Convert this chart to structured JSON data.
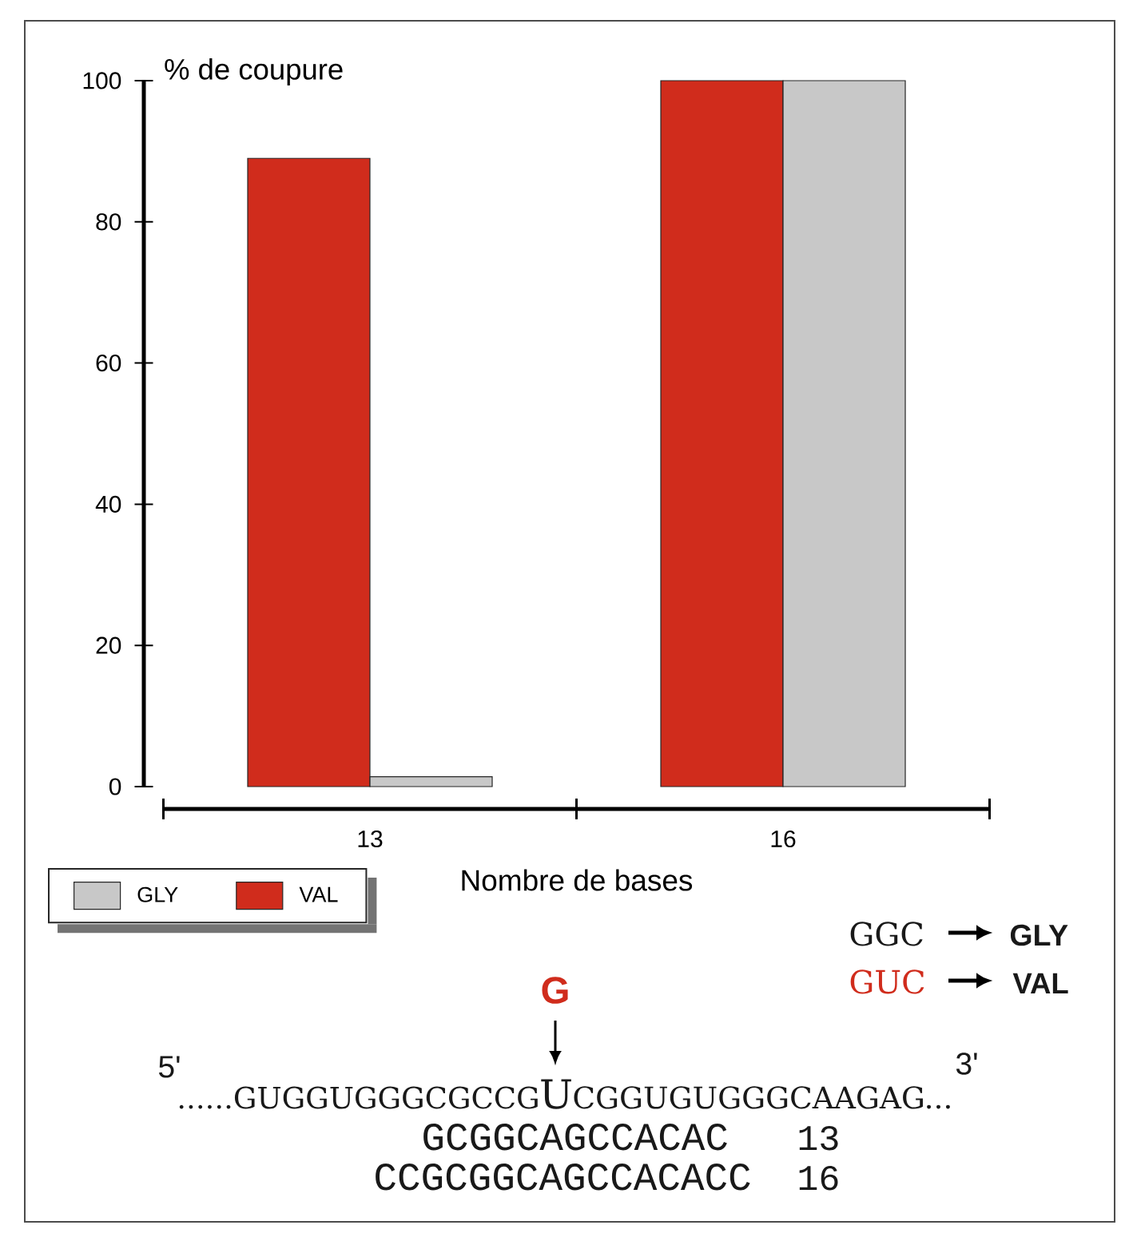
{
  "chart_data": {
    "type": "bar",
    "xlabel": "Nombre de bases",
    "ylabel": "% de coupure",
    "categories": [
      "13",
      "16"
    ],
    "series": [
      {
        "name": "VAL",
        "color": "#d02c1c",
        "values": [
          89,
          100
        ]
      },
      {
        "name": "GLY",
        "color": "#c8c8c8",
        "values": [
          1.4,
          100
        ]
      }
    ],
    "ylim": [
      0,
      100
    ],
    "yticks": [
      0,
      20,
      40,
      60,
      80,
      100
    ],
    "legend": "bottom left",
    "annotations": [
      "GGC",
      "GLY",
      "GUC",
      "VAL",
      "G",
      "5'",
      "3'",
      "......GUGGUGGGCGCCG",
      "U",
      "CGGUGUGGGCAAGAG...",
      "GCGGCAGCCACAC",
      "13",
      "CCGCGGCAGCCACACC",
      "16"
    ]
  }
}
